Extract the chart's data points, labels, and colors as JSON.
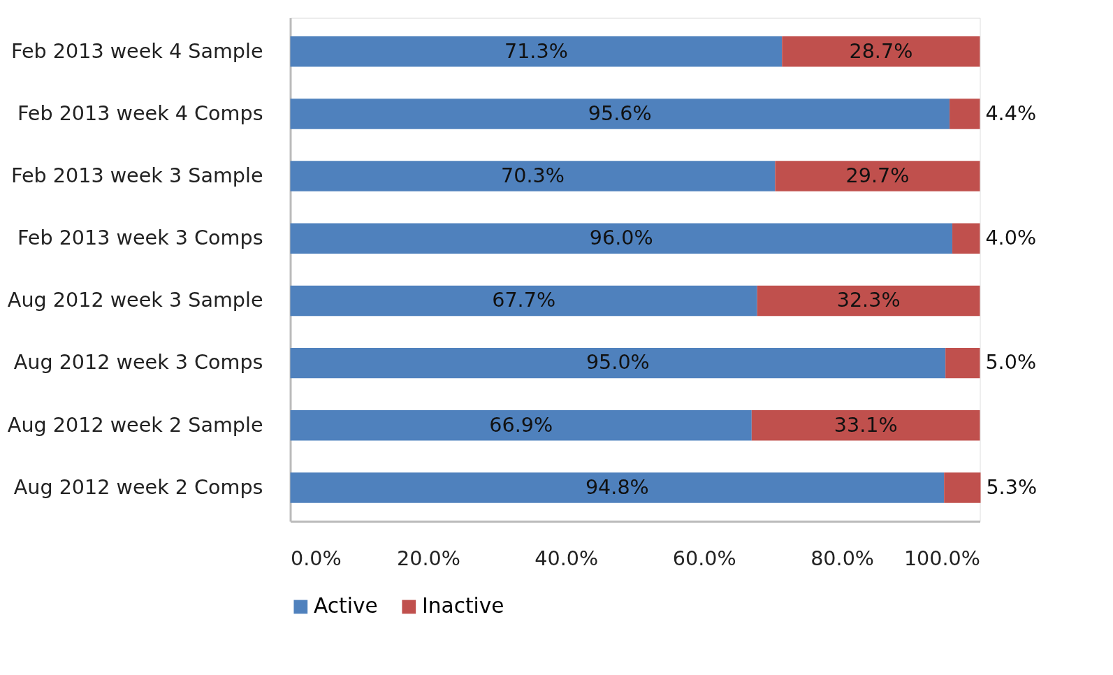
{
  "chart_data": {
    "type": "bar",
    "orientation": "horizontal",
    "stacked": true,
    "categories": [
      "Feb 2013 week 4 Sample",
      "Feb 2013 week 4 Comps",
      "Feb 2013 week 3 Sample",
      "Feb 2013 week 3 Comps",
      "Aug 2012 week 3 Sample",
      "Aug 2012 week 3 Comps",
      "Aug 2012 week 2 Sample",
      "Aug 2012 week 2 Comps"
    ],
    "series": [
      {
        "name": "Active",
        "color": "#4f81bd",
        "values": [
          71.3,
          95.6,
          70.3,
          96.0,
          67.7,
          95.0,
          66.9,
          94.8
        ],
        "value_labels": [
          "71.3%",
          "95.6%",
          "70.3%",
          "96.0%",
          "67.7%",
          "95.0%",
          "66.9%",
          "94.8%"
        ]
      },
      {
        "name": "Inactive",
        "color": "#c0504d",
        "values": [
          28.7,
          4.4,
          29.7,
          4.0,
          32.3,
          5.0,
          33.1,
          5.3
        ],
        "value_labels": [
          "28.7%",
          "4.4%",
          "29.7%",
          "4.0%",
          "32.3%",
          "5.0%",
          "33.1%",
          "5.3%"
        ]
      }
    ],
    "xlim": [
      0,
      100
    ],
    "xticks": [
      {
        "value": 0,
        "label": "0.0%"
      },
      {
        "value": 20,
        "label": "20.0%"
      },
      {
        "value": 40,
        "label": "40.0%"
      },
      {
        "value": 60,
        "label": "60.0%"
      },
      {
        "value": 80,
        "label": "80.0%"
      },
      {
        "value": 100,
        "label": "100.0%"
      }
    ],
    "grid": false,
    "legend": "bottom"
  }
}
